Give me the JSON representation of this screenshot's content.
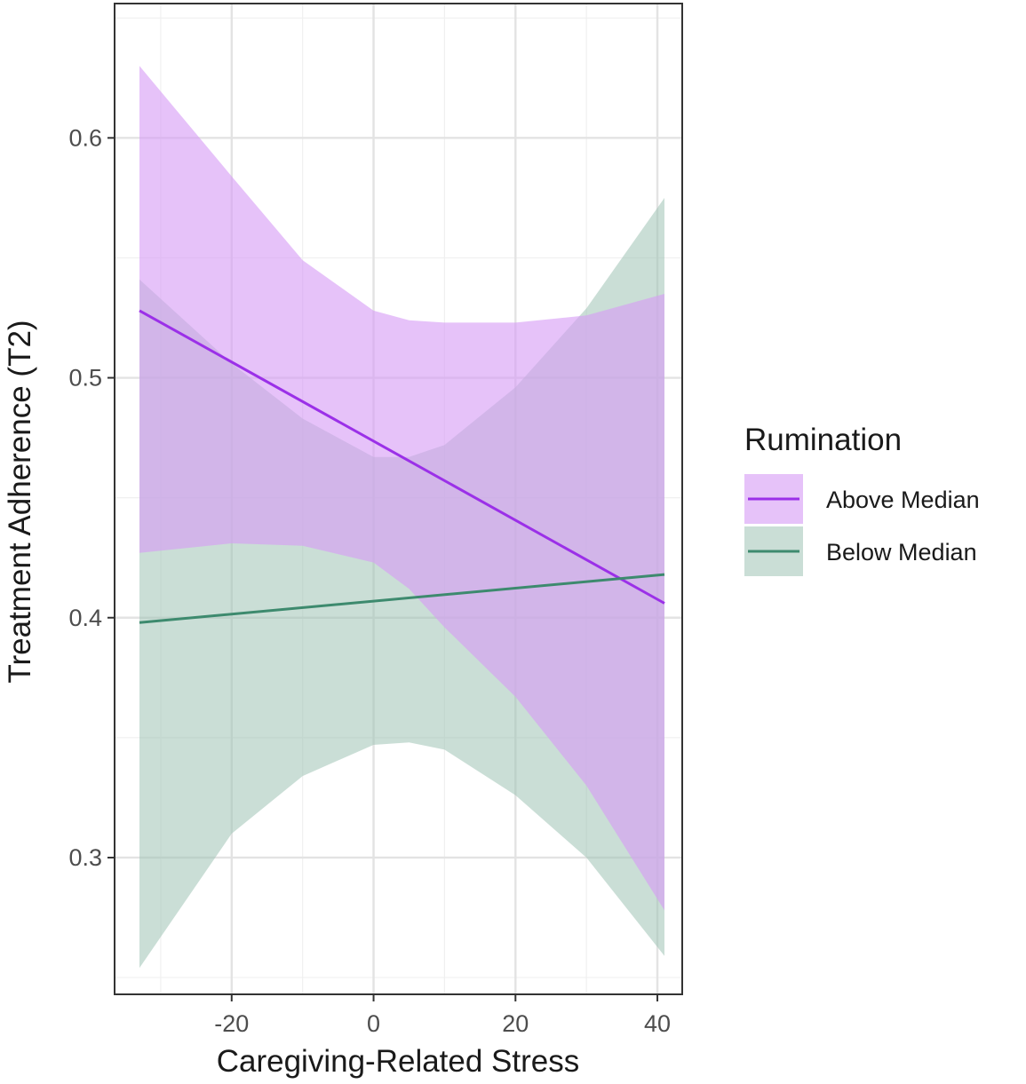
{
  "chart_data": {
    "type": "line",
    "xlabel": "Caregiving-Related Stress",
    "ylabel": "Treatment Adherence (T2)",
    "xlim": [
      -36.5,
      43.5
    ],
    "ylim": [
      0.243,
      0.656
    ],
    "x_ticks": [
      -20,
      0,
      20,
      40
    ],
    "x_tick_labels": [
      "-20",
      "0",
      "20",
      "40"
    ],
    "y_ticks": [
      0.3,
      0.4,
      0.5,
      0.6
    ],
    "y_tick_labels": [
      "0.3",
      "0.4",
      "0.5",
      "0.6"
    ],
    "grid": true,
    "legend": {
      "title": "Rumination",
      "position": "right"
    },
    "series": [
      {
        "name": "Above Median",
        "color": "#9b30e8",
        "ribbon_color": "#d79cf5",
        "line": [
          [
            -33,
            0.528
          ],
          [
            41,
            0.406
          ]
        ],
        "ribbon": [
          {
            "x": -33,
            "lower": 0.427,
            "upper": 0.63
          },
          {
            "x": -20,
            "lower": 0.431,
            "upper": 0.584
          },
          {
            "x": -10,
            "lower": 0.43,
            "upper": 0.549
          },
          {
            "x": 0,
            "lower": 0.423,
            "upper": 0.528
          },
          {
            "x": 5,
            "lower": 0.412,
            "upper": 0.524
          },
          {
            "x": 10,
            "lower": 0.396,
            "upper": 0.523
          },
          {
            "x": 20,
            "lower": 0.367,
            "upper": 0.523
          },
          {
            "x": 30,
            "lower": 0.33,
            "upper": 0.526
          },
          {
            "x": 41,
            "lower": 0.278,
            "upper": 0.535
          }
        ]
      },
      {
        "name": "Below Median",
        "color": "#3d8a6e",
        "ribbon_color": "#9ec3b4",
        "line": [
          [
            -33,
            0.398
          ],
          [
            41,
            0.418
          ]
        ],
        "ribbon": [
          {
            "x": -33,
            "lower": 0.254,
            "upper": 0.541
          },
          {
            "x": -20,
            "lower": 0.31,
            "upper": 0.506
          },
          {
            "x": -10,
            "lower": 0.334,
            "upper": 0.483
          },
          {
            "x": 0,
            "lower": 0.347,
            "upper": 0.467
          },
          {
            "x": 5,
            "lower": 0.348,
            "upper": 0.467
          },
          {
            "x": 10,
            "lower": 0.345,
            "upper": 0.472
          },
          {
            "x": 20,
            "lower": 0.326,
            "upper": 0.496
          },
          {
            "x": 30,
            "lower": 0.3,
            "upper": 0.529
          },
          {
            "x": 41,
            "lower": 0.259,
            "upper": 0.575
          }
        ]
      }
    ]
  }
}
